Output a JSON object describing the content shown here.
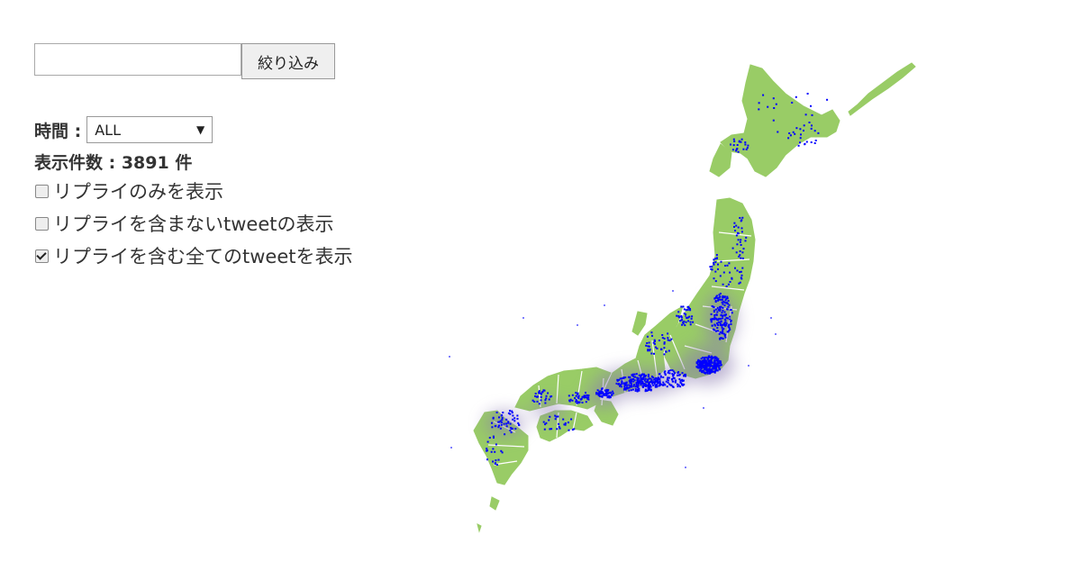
{
  "filter": {
    "input_value": "",
    "input_placeholder": "",
    "button_label": "絞り込み"
  },
  "time": {
    "label": "時間 :",
    "selected": "ALL"
  },
  "count": {
    "label": "表示件数 : 3891 件"
  },
  "options": [
    {
      "label": "リプライのみを表示",
      "checked": false
    },
    {
      "label": "リプライを含まないtweetの表示",
      "checked": false
    },
    {
      "label": "リプライを含む全てのtweetを表示",
      "checked": true
    }
  ],
  "map": {
    "land_color": "#99cc66",
    "border_color": "#ffffff",
    "point_color": "#0000ff",
    "heat_color": "#8a7ab0"
  }
}
